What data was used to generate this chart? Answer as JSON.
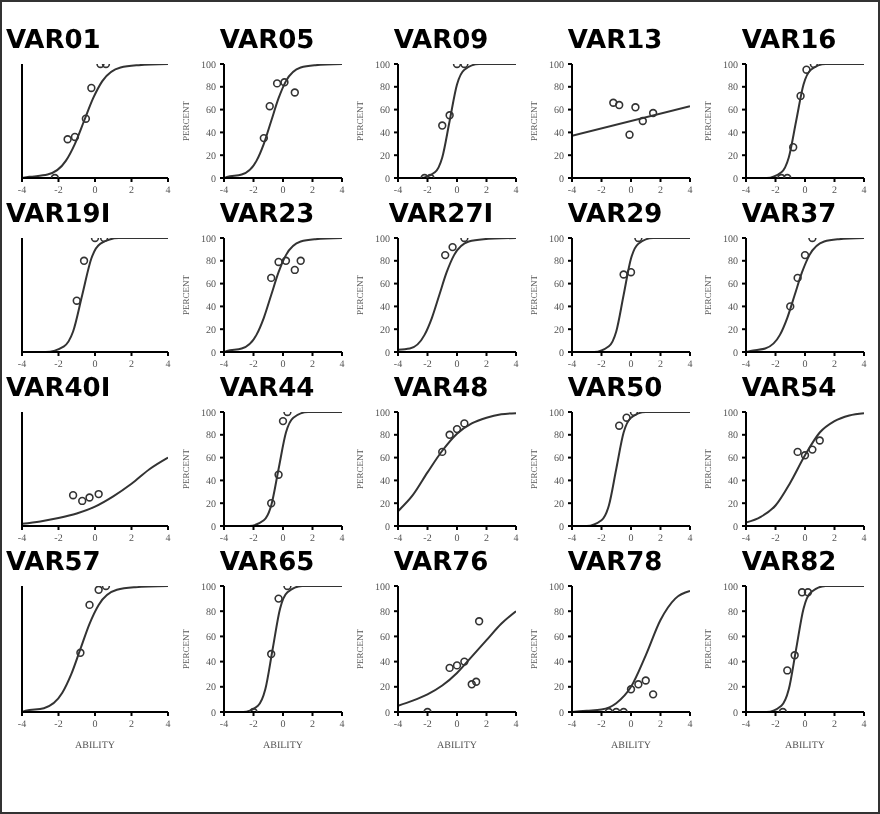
{
  "chart_data": [
    {
      "type": "scatter",
      "title": "VAR01",
      "xlim": [
        -4,
        4
      ],
      "ylim": [
        0,
        100
      ],
      "xticks": [
        -4,
        -2,
        0,
        2,
        4
      ],
      "yticks": [
        0,
        20,
        40,
        60,
        80,
        100
      ],
      "tick_labels": "x",
      "marker": "circle",
      "series": [
        {
          "type": "line",
          "marker": "none",
          "color": "#333333",
          "x": [
            -4,
            -3.6,
            -2.6,
            -1.6,
            -1.1,
            -0.6,
            -0.1,
            0.4,
            1.4,
            2.4,
            4
          ],
          "values": [
            0,
            1,
            3,
            15,
            30,
            50,
            70,
            85,
            97,
            99,
            100
          ]
        },
        {
          "type": "scatter",
          "color": "#333333",
          "x": [
            -2.2,
            -1.5,
            -1.1,
            -0.5,
            -0.2,
            0.3,
            0.6
          ],
          "values": [
            0,
            34,
            36,
            52,
            79,
            100,
            100
          ]
        }
      ]
    },
    {
      "type": "scatter",
      "title": "VAR05",
      "ylabel": "PERCENT",
      "xlim": [
        -4,
        4
      ],
      "ylim": [
        0,
        100
      ],
      "xticks": [
        -4,
        -2,
        0,
        2,
        4
      ],
      "yticks": [
        0,
        20,
        40,
        60,
        80,
        100
      ],
      "marker": "circle",
      "series": [
        {
          "type": "line",
          "marker": "none",
          "color": "#333333",
          "x": [
            -4,
            -3.8,
            -2.8,
            -1.8,
            -1.3,
            -0.8,
            -0.3,
            0.2,
            1.2,
            2.2,
            4
          ],
          "values": [
            0,
            1,
            3,
            15,
            30,
            50,
            70,
            85,
            97,
            99,
            100
          ]
        },
        {
          "type": "scatter",
          "color": "#333333",
          "x": [
            -1.3,
            -0.9,
            -0.4,
            0.1,
            0.8
          ],
          "values": [
            35,
            63,
            83,
            84,
            75
          ]
        }
      ]
    },
    {
      "type": "scatter",
      "title": "VAR09",
      "ylabel": "PERCENT",
      "xlim": [
        -4,
        4
      ],
      "ylim": [
        0,
        100
      ],
      "xticks": [
        -4,
        -2,
        0,
        2,
        4
      ],
      "yticks": [
        0,
        20,
        40,
        60,
        80,
        100
      ],
      "marker": "circle",
      "series": [
        {
          "type": "line",
          "marker": "none",
          "color": "#333333",
          "x": [
            -4,
            -2.5,
            -1.5,
            -1,
            -0.5,
            0,
            0.5,
            1.5,
            4
          ],
          "values": [
            0,
            0,
            5,
            18,
            50,
            82,
            95,
            100,
            100
          ]
        },
        {
          "type": "scatter",
          "color": "#333333",
          "x": [
            -2.2,
            -1.8,
            -1,
            -0.5,
            0,
            0.5
          ],
          "values": [
            0,
            0,
            46,
            55,
            100,
            100
          ]
        }
      ]
    },
    {
      "type": "scatter",
      "title": "VAR13",
      "ylabel": "PERCENT",
      "xlim": [
        -4,
        4
      ],
      "ylim": [
        0,
        100
      ],
      "xticks": [
        -4,
        -2,
        0,
        2,
        4
      ],
      "yticks": [
        0,
        20,
        40,
        60,
        80,
        100
      ],
      "marker": "circle",
      "series": [
        {
          "type": "line",
          "marker": "none",
          "color": "#333333",
          "x": [
            -4,
            4
          ],
          "values": [
            37,
            63
          ]
        },
        {
          "type": "scatter",
          "color": "#333333",
          "x": [
            -1.2,
            -0.8,
            -0.1,
            0.3,
            0.8,
            1.5
          ],
          "values": [
            66,
            64,
            38,
            62,
            50,
            57
          ]
        }
      ]
    },
    {
      "type": "scatter",
      "title": "VAR16",
      "ylabel": "PERCENT",
      "xlim": [
        -4,
        4
      ],
      "ylim": [
        0,
        100
      ],
      "xticks": [
        -4,
        -2,
        0,
        2,
        4
      ],
      "yticks": [
        0,
        20,
        40,
        60,
        80,
        100
      ],
      "marker": "circle",
      "series": [
        {
          "type": "line",
          "marker": "none",
          "color": "#333333",
          "x": [
            -4,
            -2.6,
            -1.6,
            -1.1,
            -0.6,
            -0.1,
            0.4,
            1.4,
            4
          ],
          "values": [
            0,
            0,
            5,
            18,
            50,
            82,
            95,
            100,
            100
          ]
        },
        {
          "type": "scatter",
          "color": "#333333",
          "x": [
            -1.6,
            -1.2,
            -0.8,
            -0.3,
            0.1,
            0.6
          ],
          "values": [
            0,
            0,
            27,
            72,
            95,
            100
          ]
        }
      ]
    },
    {
      "type": "scatter",
      "title": "VAR19I",
      "xlim": [
        -4,
        4
      ],
      "ylim": [
        0,
        100
      ],
      "xticks": [
        -4,
        -2,
        0,
        2,
        4
      ],
      "yticks": [
        0,
        20,
        40,
        60,
        80,
        100
      ],
      "tick_labels": "x",
      "marker": "circle",
      "series": [
        {
          "type": "line",
          "marker": "none",
          "color": "#333333",
          "x": [
            -4,
            -2.7,
            -1.7,
            -1.2,
            -0.7,
            -0.2,
            0.3,
            1.3,
            4
          ],
          "values": [
            0,
            0,
            5,
            18,
            50,
            82,
            95,
            100,
            100
          ]
        },
        {
          "type": "scatter",
          "color": "#333333",
          "x": [
            -1,
            -0.6,
            0,
            0.5
          ],
          "values": [
            45,
            80,
            100,
            100
          ]
        }
      ]
    },
    {
      "type": "scatter",
      "title": "VAR23",
      "ylabel": "PERCENT",
      "xlim": [
        -4,
        4
      ],
      "ylim": [
        0,
        100
      ],
      "xticks": [
        -4,
        -2,
        0,
        2,
        4
      ],
      "yticks": [
        0,
        20,
        40,
        60,
        80,
        100
      ],
      "marker": "circle",
      "series": [
        {
          "type": "line",
          "marker": "none",
          "color": "#333333",
          "x": [
            -4,
            -3.8,
            -2.8,
            -1.8,
            -1.3,
            -0.8,
            -0.3,
            0.2,
            1.2,
            2.2,
            4
          ],
          "values": [
            0,
            1,
            3,
            15,
            30,
            50,
            70,
            85,
            97,
            99,
            100
          ]
        },
        {
          "type": "scatter",
          "color": "#333333",
          "x": [
            -0.8,
            -0.3,
            0.2,
            0.8,
            1.2
          ],
          "values": [
            65,
            79,
            80,
            72,
            80
          ]
        }
      ]
    },
    {
      "type": "scatter",
      "title": "VAR27I",
      "ylabel": "PERCENT",
      "xlim": [
        -4,
        4
      ],
      "ylim": [
        0,
        100
      ],
      "xticks": [
        -4,
        -2,
        0,
        2,
        4
      ],
      "yticks": [
        0,
        20,
        40,
        60,
        80,
        100
      ],
      "marker": "circle",
      "series": [
        {
          "type": "line",
          "marker": "none",
          "color": "#333333",
          "x": [
            -4,
            -3.2,
            -2.2,
            -1.7,
            -1.2,
            -0.7,
            -0.2,
            0.8,
            1.8,
            4
          ],
          "values": [
            2,
            3,
            15,
            30,
            50,
            70,
            85,
            97,
            99,
            100
          ]
        },
        {
          "type": "scatter",
          "color": "#333333",
          "x": [
            -0.8,
            -0.3,
            0.5
          ],
          "values": [
            85,
            92,
            100
          ]
        }
      ]
    },
    {
      "type": "scatter",
      "title": "VAR29",
      "ylabel": "PERCENT",
      "xlim": [
        -4,
        4
      ],
      "ylim": [
        0,
        100
      ],
      "xticks": [
        -4,
        -2,
        0,
        2,
        4
      ],
      "yticks": [
        0,
        20,
        40,
        60,
        80,
        100
      ],
      "marker": "circle",
      "series": [
        {
          "type": "line",
          "marker": "none",
          "color": "#333333",
          "x": [
            -4,
            -2.5,
            -1.5,
            -1,
            -0.5,
            0,
            0.5,
            1.5,
            4
          ],
          "values": [
            0,
            0,
            5,
            18,
            50,
            82,
            95,
            100,
            100
          ]
        },
        {
          "type": "scatter",
          "color": "#333333",
          "x": [
            -0.5,
            0,
            0.5
          ],
          "values": [
            68,
            70,
            100
          ]
        }
      ]
    },
    {
      "type": "scatter",
      "title": "VAR37",
      "ylabel": "PERCENT",
      "xlim": [
        -4,
        4
      ],
      "ylim": [
        0,
        100
      ],
      "xticks": [
        -4,
        -2,
        0,
        2,
        4
      ],
      "yticks": [
        0,
        20,
        40,
        60,
        80,
        100
      ],
      "marker": "circle",
      "series": [
        {
          "type": "line",
          "marker": "none",
          "color": "#333333",
          "x": [
            -4,
            -3.7,
            -2.7,
            -1.7,
            -1.2,
            -0.7,
            -0.2,
            0.3,
            1.3,
            2.3,
            4
          ],
          "values": [
            0,
            1,
            3,
            15,
            30,
            50,
            70,
            85,
            97,
            99,
            100
          ]
        },
        {
          "type": "scatter",
          "color": "#333333",
          "x": [
            -1,
            -0.5,
            0,
            0.5
          ],
          "values": [
            40,
            65,
            85,
            100
          ]
        }
      ]
    },
    {
      "type": "scatter",
      "title": "VAR40I",
      "xlim": [
        -4,
        4
      ],
      "ylim": [
        0,
        100
      ],
      "xticks": [
        -4,
        -2,
        0,
        2,
        4
      ],
      "yticks": [
        0,
        20,
        40,
        60,
        80,
        100
      ],
      "tick_labels": "x",
      "marker": "circle",
      "series": [
        {
          "type": "line",
          "marker": "none",
          "color": "#333333",
          "x": [
            -4,
            -3,
            -2,
            -1,
            0,
            1,
            2,
            3,
            4
          ],
          "values": [
            2,
            4,
            7,
            11,
            17,
            26,
            37,
            50,
            60
          ]
        },
        {
          "type": "scatter",
          "color": "#333333",
          "x": [
            -1.2,
            -0.7,
            -0.3,
            0.2
          ],
          "values": [
            27,
            22,
            25,
            28
          ]
        }
      ]
    },
    {
      "type": "scatter",
      "title": "VAR44",
      "ylabel": "PERCENT",
      "xlim": [
        -4,
        4
      ],
      "ylim": [
        0,
        100
      ],
      "xticks": [
        -4,
        -2,
        0,
        2,
        4
      ],
      "yticks": [
        0,
        20,
        40,
        60,
        80,
        100
      ],
      "marker": "circle",
      "series": [
        {
          "type": "line",
          "marker": "none",
          "color": "#333333",
          "x": [
            -4,
            -2.3,
            -1.3,
            -0.8,
            -0.3,
            0.2,
            0.7,
            1.7,
            4
          ],
          "values": [
            0,
            0,
            5,
            18,
            50,
            82,
            95,
            100,
            100
          ]
        },
        {
          "type": "scatter",
          "color": "#333333",
          "x": [
            -0.8,
            -0.3,
            0,
            0.3
          ],
          "values": [
            20,
            45,
            92,
            100
          ]
        }
      ]
    },
    {
      "type": "scatter",
      "title": "VAR48",
      "ylabel": "PERCENT",
      "xlim": [
        -4,
        4
      ],
      "ylim": [
        0,
        100
      ],
      "xticks": [
        -4,
        -2,
        0,
        2,
        4
      ],
      "yticks": [
        0,
        20,
        40,
        60,
        80,
        100
      ],
      "marker": "circle",
      "series": [
        {
          "type": "line",
          "marker": "none",
          "color": "#333333",
          "x": [
            -4,
            -3,
            -2,
            -1,
            0,
            1,
            2,
            3,
            4
          ],
          "values": [
            13,
            27,
            47,
            66,
            81,
            90,
            95,
            98,
            99
          ]
        },
        {
          "type": "scatter",
          "color": "#333333",
          "x": [
            -1,
            -0.5,
            0,
            0.5
          ],
          "values": [
            65,
            80,
            85,
            90
          ]
        }
      ]
    },
    {
      "type": "scatter",
      "title": "VAR50",
      "ylabel": "PERCENT",
      "xlim": [
        -4,
        4
      ],
      "ylim": [
        0,
        100
      ],
      "xticks": [
        -4,
        -2,
        0,
        2,
        4
      ],
      "yticks": [
        0,
        20,
        40,
        60,
        80,
        100
      ],
      "marker": "circle",
      "series": [
        {
          "type": "line",
          "marker": "none",
          "color": "#333333",
          "x": [
            -4,
            -3,
            -2,
            -1.5,
            -1,
            -0.5,
            0,
            1,
            4
          ],
          "values": [
            0,
            0,
            5,
            18,
            50,
            82,
            95,
            100,
            100
          ]
        },
        {
          "type": "scatter",
          "color": "#333333",
          "x": [
            -0.8,
            -0.3,
            0.2
          ],
          "values": [
            88,
            95,
            100
          ]
        }
      ]
    },
    {
      "type": "scatter",
      "title": "VAR54",
      "ylabel": "PERCENT",
      "xlim": [
        -4,
        4
      ],
      "ylim": [
        0,
        100
      ],
      "xticks": [
        -4,
        -2,
        0,
        2,
        4
      ],
      "yticks": [
        0,
        20,
        40,
        60,
        80,
        100
      ],
      "marker": "circle",
      "series": [
        {
          "type": "line",
          "marker": "none",
          "color": "#333333",
          "x": [
            -4,
            -3,
            -2,
            -1,
            0,
            1,
            2,
            3,
            4
          ],
          "values": [
            3,
            8,
            18,
            38,
            62,
            82,
            92,
            97,
            99
          ]
        },
        {
          "type": "scatter",
          "color": "#333333",
          "x": [
            -0.5,
            0,
            0.5,
            1
          ],
          "values": [
            65,
            62,
            67,
            75
          ]
        }
      ]
    },
    {
      "type": "scatter",
      "title": "VAR57",
      "xlabel": "ABILITY",
      "xlim": [
        -4,
        4
      ],
      "ylim": [
        0,
        100
      ],
      "xticks": [
        -4,
        -2,
        0,
        2,
        4
      ],
      "yticks": [
        0,
        20,
        40,
        60,
        80,
        100
      ],
      "tick_labels": "x",
      "marker": "circle",
      "series": [
        {
          "type": "line",
          "marker": "none",
          "color": "#333333",
          "x": [
            -4,
            -3.8,
            -2.8,
            -1.8,
            -1.3,
            -0.8,
            -0.3,
            0.2,
            1.2,
            2.2,
            4
          ],
          "values": [
            0,
            1,
            3,
            15,
            30,
            50,
            70,
            85,
            97,
            99,
            100
          ]
        },
        {
          "type": "scatter",
          "color": "#333333",
          "x": [
            -0.8,
            -0.3,
            0.2,
            0.6
          ],
          "values": [
            47,
            85,
            97,
            100
          ]
        }
      ]
    },
    {
      "type": "scatter",
      "title": "VAR65",
      "ylabel": "PERCENT",
      "xlabel": "ABILITY",
      "xlim": [
        -4,
        4
      ],
      "ylim": [
        0,
        100
      ],
      "xticks": [
        -4,
        -2,
        0,
        2,
        4
      ],
      "yticks": [
        0,
        20,
        40,
        60,
        80,
        100
      ],
      "marker": "circle",
      "series": [
        {
          "type": "line",
          "marker": "none",
          "color": "#333333",
          "x": [
            -4,
            -2.7,
            -1.7,
            -1.2,
            -0.7,
            -0.2,
            0.3,
            1.3,
            4
          ],
          "values": [
            0,
            0,
            5,
            18,
            50,
            82,
            95,
            100,
            100
          ]
        },
        {
          "type": "scatter",
          "color": "#333333",
          "x": [
            -2,
            -0.8,
            -0.3,
            0.3
          ],
          "values": [
            0,
            46,
            90,
            100
          ]
        }
      ]
    },
    {
      "type": "scatter",
      "title": "VAR76",
      "ylabel": "PERCENT",
      "xlabel": "ABILITY",
      "xlim": [
        -4,
        4
      ],
      "ylim": [
        0,
        100
      ],
      "xticks": [
        -4,
        -2,
        0,
        2,
        4
      ],
      "yticks": [
        0,
        20,
        40,
        60,
        80,
        100
      ],
      "marker": "circle",
      "series": [
        {
          "type": "line",
          "marker": "none",
          "color": "#333333",
          "x": [
            -4,
            -3,
            -2,
            -1,
            0,
            1,
            2,
            3,
            4
          ],
          "values": [
            5,
            9,
            14,
            21,
            31,
            44,
            57,
            70,
            80
          ]
        },
        {
          "type": "scatter",
          "color": "#333333",
          "x": [
            -2,
            -0.5,
            0,
            0.5,
            1,
            1.3,
            1.5
          ],
          "values": [
            0,
            35,
            37,
            40,
            22,
            24,
            72
          ]
        }
      ]
    },
    {
      "type": "scatter",
      "title": "VAR78",
      "ylabel": "PERCENT",
      "xlabel": "ABILITY",
      "xlim": [
        -4,
        4
      ],
      "ylim": [
        0,
        100
      ],
      "xticks": [
        -4,
        -2,
        0,
        2,
        4
      ],
      "yticks": [
        0,
        20,
        40,
        60,
        80,
        100
      ],
      "marker": "circle",
      "series": [
        {
          "type": "line",
          "marker": "none",
          "color": "#333333",
          "x": [
            -4,
            -3,
            -2,
            -1,
            0,
            1,
            2,
            3,
            4
          ],
          "values": [
            0,
            1,
            2,
            7,
            20,
            45,
            73,
            90,
            96
          ]
        },
        {
          "type": "scatter",
          "color": "#333333",
          "x": [
            -1.5,
            -1,
            -0.5,
            0,
            0.5,
            1,
            1.5
          ],
          "values": [
            0,
            0,
            0,
            18,
            22,
            25,
            14
          ]
        }
      ]
    },
    {
      "type": "scatter",
      "title": "VAR82",
      "ylabel": "PERCENT",
      "xlabel": "ABILITY",
      "xlim": [
        -4,
        4
      ],
      "ylim": [
        0,
        100
      ],
      "xticks": [
        -4,
        -2,
        0,
        2,
        4
      ],
      "yticks": [
        0,
        20,
        40,
        60,
        80,
        100
      ],
      "marker": "circle",
      "series": [
        {
          "type": "line",
          "marker": "none",
          "color": "#333333",
          "x": [
            -4,
            -2.6,
            -1.6,
            -1.1,
            -0.6,
            -0.1,
            0.4,
            1.4,
            4
          ],
          "values": [
            0,
            0,
            5,
            18,
            50,
            82,
            95,
            100,
            100
          ]
        },
        {
          "type": "scatter",
          "color": "#333333",
          "x": [
            -1.5,
            -1.2,
            -0.7,
            -0.2,
            0.2
          ],
          "values": [
            0,
            33,
            45,
            95,
            95
          ]
        }
      ]
    }
  ]
}
